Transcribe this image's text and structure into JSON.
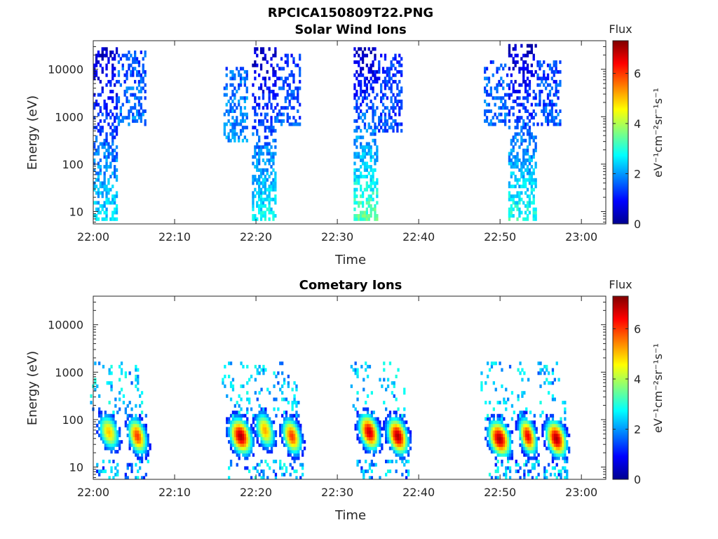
{
  "figure": {
    "title": "RPCICA150809T22.PNG"
  },
  "colormap": [
    "#00008f",
    "#0000ff",
    "#0080ff",
    "#00ffff",
    "#80ff80",
    "#ffff00",
    "#ff8000",
    "#ff0000",
    "#800000"
  ],
  "chart_data": [
    {
      "type": "heatmap",
      "title": "Solar Wind Ions",
      "xlabel": "Time",
      "ylabel": "Energy (eV)",
      "xlim_minutes": [
        0,
        63
      ],
      "ylim": [
        5.5,
        40000
      ],
      "yscale": "log",
      "x_ticks": [
        "22:00",
        "22:10",
        "22:20",
        "22:30",
        "22:40",
        "22:50",
        "23:00"
      ],
      "y_ticks": [
        "10",
        "100",
        "1000",
        "10000"
      ],
      "colorbar": {
        "label": "Flux",
        "units": "eV⁻¹cm⁻²sr⁻¹s⁻¹",
        "ticks": [
          "0",
          "2",
          "4",
          "6"
        ],
        "range": [
          0,
          7.3
        ]
      },
      "bursts": [
        {
          "t_start": 0,
          "t_end": 3,
          "e_min": 6,
          "e_max": 30000,
          "low_flux": 2.6,
          "high_flux": 0.4
        },
        {
          "t_start": 3,
          "t_end": 6.5,
          "e_min": 600,
          "e_max": 25000,
          "low_flux": 1.8,
          "high_flux": 1.4
        },
        {
          "t_start": 16,
          "t_end": 19,
          "e_min": 300,
          "e_max": 12000,
          "low_flux": 2.0,
          "high_flux": 1.6
        },
        {
          "t_start": 19.5,
          "t_end": 22.5,
          "e_min": 6,
          "e_max": 30000,
          "low_flux": 2.8,
          "high_flux": 0.3
        },
        {
          "t_start": 22.5,
          "t_end": 25.5,
          "e_min": 600,
          "e_max": 20000,
          "low_flux": 1.6,
          "high_flux": 1.2
        },
        {
          "t_start": 32,
          "t_end": 35,
          "e_min": 6,
          "e_max": 30000,
          "low_flux": 3.4,
          "high_flux": 0.3
        },
        {
          "t_start": 35,
          "t_end": 38,
          "e_min": 500,
          "e_max": 20000,
          "low_flux": 1.5,
          "high_flux": 1.2
        },
        {
          "t_start": 48,
          "t_end": 51,
          "e_min": 600,
          "e_max": 15000,
          "low_flux": 1.8,
          "high_flux": 1.4
        },
        {
          "t_start": 51,
          "t_end": 54.5,
          "e_min": 6,
          "e_max": 35000,
          "low_flux": 3.0,
          "high_flux": 0.3
        },
        {
          "t_start": 54.5,
          "t_end": 57.5,
          "e_min": 600,
          "e_max": 15000,
          "low_flux": 1.6,
          "high_flux": 1.3
        }
      ]
    },
    {
      "type": "heatmap",
      "title": "Cometary Ions",
      "xlabel": "Time",
      "ylabel": "Energy (eV)",
      "xlim_minutes": [
        0,
        63
      ],
      "ylim": [
        5.5,
        40000
      ],
      "yscale": "log",
      "x_ticks": [
        "22:00",
        "22:10",
        "22:20",
        "22:30",
        "22:40",
        "22:50",
        "23:00"
      ],
      "y_ticks": [
        "10",
        "100",
        "1000",
        "10000"
      ],
      "colorbar": {
        "label": "Flux",
        "units": "eV⁻¹cm⁻²sr⁻¹s⁻¹",
        "ticks": [
          "0",
          "2",
          "4",
          "6"
        ],
        "range": [
          0,
          7.3
        ]
      },
      "peaks": [
        {
          "t": 1.8,
          "e_peak": 55,
          "t_spread": 1.2,
          "max_flux": 5.0
        },
        {
          "t": 5.3,
          "e_peak": 45,
          "t_spread": 1.1,
          "max_flux": 6.0
        },
        {
          "t": 18.0,
          "e_peak": 45,
          "t_spread": 1.3,
          "max_flux": 7.0
        },
        {
          "t": 21.0,
          "e_peak": 60,
          "t_spread": 1.1,
          "max_flux": 5.2
        },
        {
          "t": 24.3,
          "e_peak": 45,
          "t_spread": 1.1,
          "max_flux": 6.0
        },
        {
          "t": 33.8,
          "e_peak": 55,
          "t_spread": 1.2,
          "max_flux": 6.8
        },
        {
          "t": 37.3,
          "e_peak": 45,
          "t_spread": 1.2,
          "max_flux": 7.0
        },
        {
          "t": 49.8,
          "e_peak": 40,
          "t_spread": 1.3,
          "max_flux": 7.0
        },
        {
          "t": 53.3,
          "e_peak": 45,
          "t_spread": 1.0,
          "max_flux": 6.5
        },
        {
          "t": 56.8,
          "e_peak": 40,
          "t_spread": 1.2,
          "max_flux": 7.0
        }
      ]
    }
  ]
}
